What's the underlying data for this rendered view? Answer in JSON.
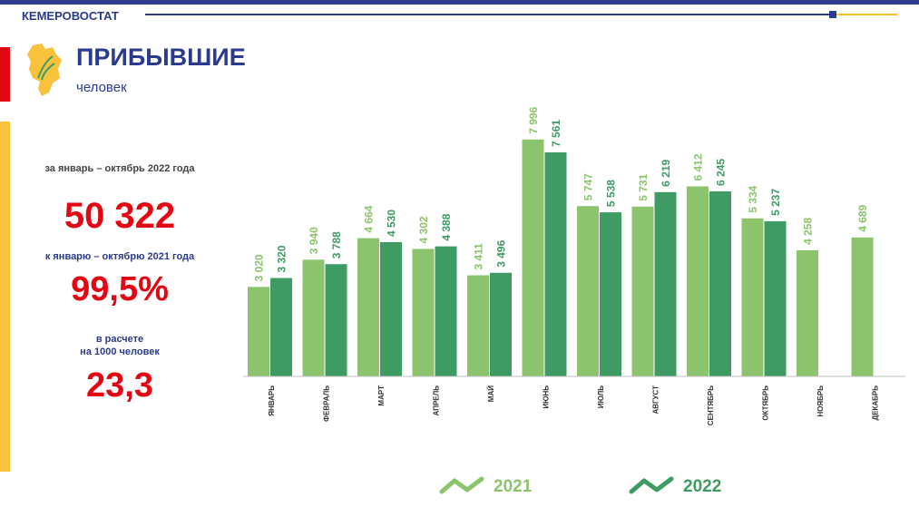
{
  "header": {
    "org": "КЕМЕРОВОСТАТ"
  },
  "title": "ПРИБЫВШИЕ",
  "subtitle": "человек",
  "summary": {
    "period_label": "за январь – октябрь 2022 года",
    "total": "50 322",
    "compare_label": "к январю – октябрю 2021 года",
    "percent": "99,5%",
    "rate_label_1": "в расчете",
    "rate_label_2": "на 1000 человек",
    "rate": "23,3"
  },
  "colors": {
    "series_2021": "#8cc46e",
    "series_2022": "#3e9b64",
    "accent_red": "#e30613",
    "brand_blue": "#2b3a8c"
  },
  "chart_data": {
    "type": "bar",
    "categories": [
      "ЯНВАРЬ",
      "ФЕВРАЛЬ",
      "МАРТ",
      "АПРЕЛЬ",
      "МАЙ",
      "ИЮНЬ",
      "ИЮЛЬ",
      "АВГУСТ",
      "СЕНТЯБРЬ",
      "ОКТЯБРЬ",
      "НОЯБРЬ",
      "ДЕКАБРЬ"
    ],
    "series": [
      {
        "name": "2021",
        "values": [
          3020,
          3940,
          4664,
          4302,
          3411,
          7996,
          5747,
          5731,
          6412,
          5334,
          4258,
          4689
        ],
        "labels": [
          "3 020",
          "3 940",
          "4 664",
          "4 302",
          "3 411",
          "7 996",
          "5 747",
          "5 731",
          "6 412",
          "5 334",
          "4 258",
          "4 689"
        ]
      },
      {
        "name": "2022",
        "values": [
          3320,
          3788,
          4530,
          4388,
          3496,
          7561,
          5538,
          6219,
          6245,
          5237,
          null,
          null
        ],
        "labels": [
          "3 320",
          "3 788",
          "4 530",
          "4 388",
          "3 496",
          "7 561",
          "5 538",
          "6 219",
          "6 245",
          "5 237",
          null,
          null
        ]
      }
    ],
    "ylim": [
      0,
      8000
    ],
    "legend_position": "bottom",
    "grid": false
  }
}
